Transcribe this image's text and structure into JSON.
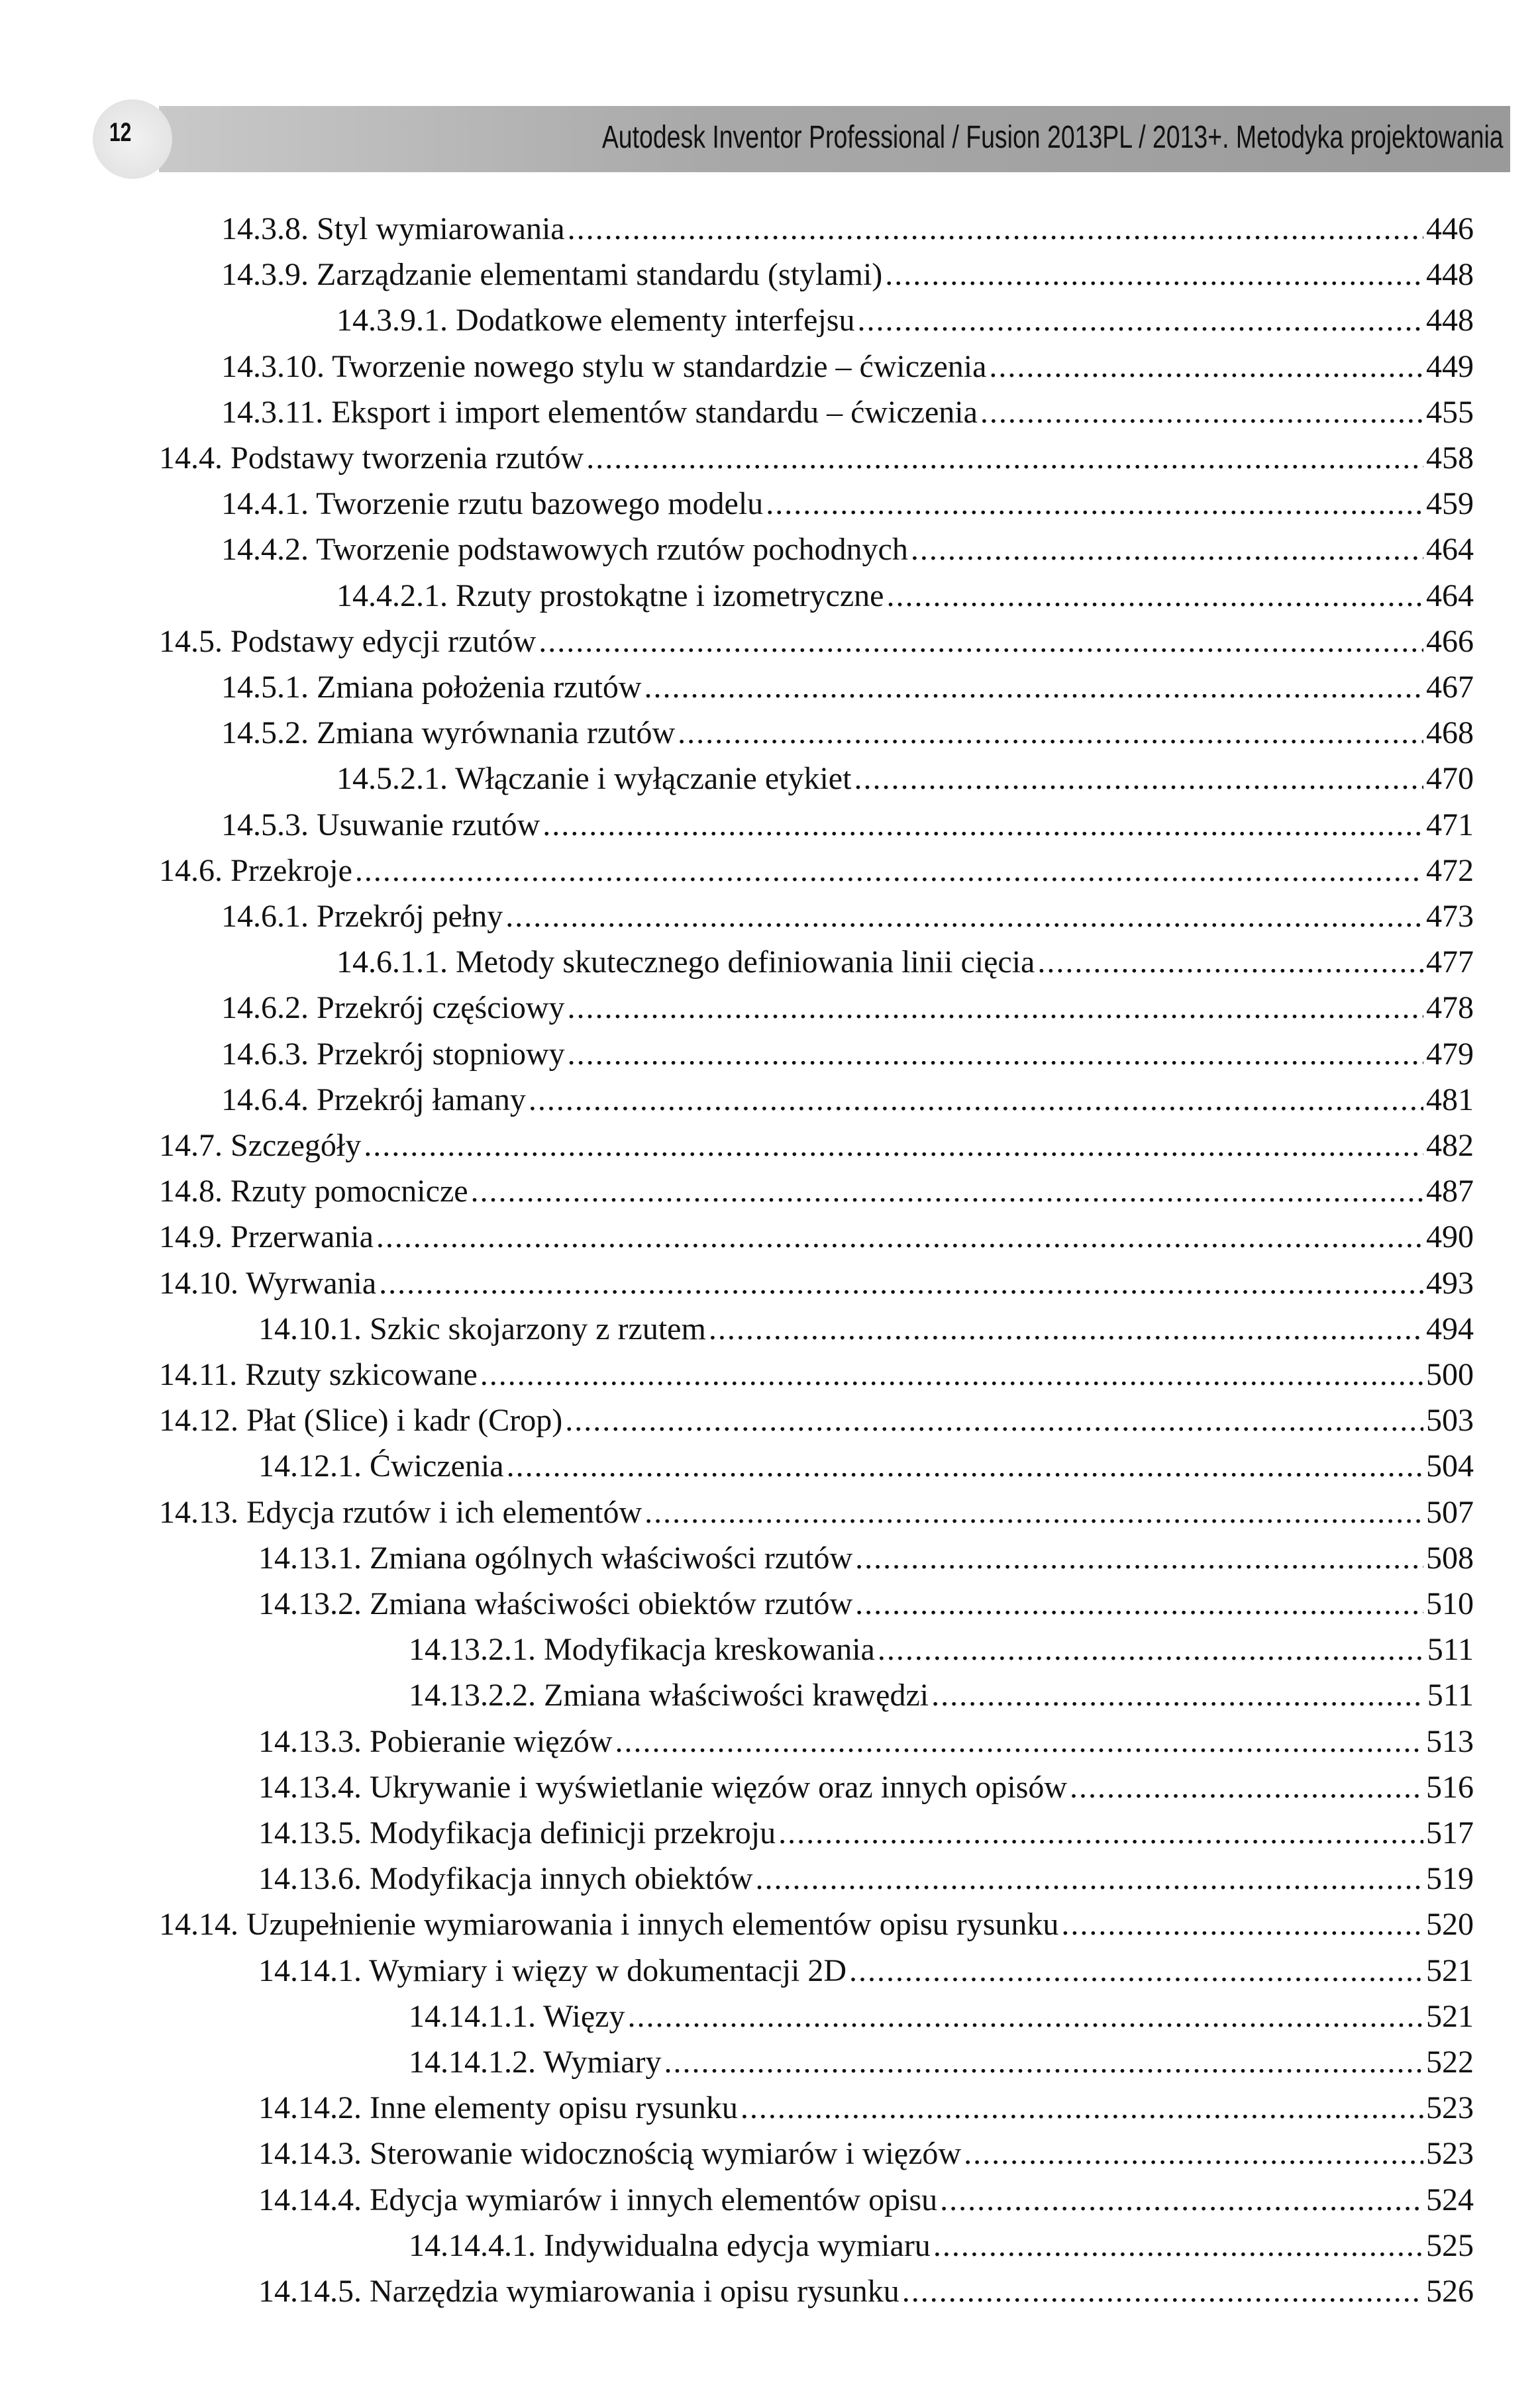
{
  "header": {
    "page_number": "12",
    "title": "Autodesk Inventor Professional / Fusion 2013PL / 2013+. Metodyka projektowania"
  },
  "toc": [
    {
      "level": 2,
      "title": "14.3.8. Styl wymiarowania",
      "page": "446"
    },
    {
      "level": 2,
      "title": "14.3.9. Zarządzanie elementami standardu (stylami)",
      "page": "448"
    },
    {
      "level": 3,
      "title": "14.3.9.1. Dodatkowe elementy interfejsu",
      "page": "448"
    },
    {
      "level": 2,
      "title": "14.3.10. Tworzenie nowego stylu w standardzie – ćwiczenia",
      "page": "449"
    },
    {
      "level": 2,
      "title": "14.3.11. Eksport i import elementów standardu – ćwiczenia",
      "page": "455"
    },
    {
      "level": 1,
      "title": "14.4. Podstawy tworzenia rzutów",
      "page": "458"
    },
    {
      "level": 2,
      "title": "14.4.1. Tworzenie rzutu bazowego modelu",
      "page": "459"
    },
    {
      "level": 2,
      "title": "14.4.2. Tworzenie podstawowych rzutów pochodnych",
      "page": "464"
    },
    {
      "level": 3,
      "title": "14.4.2.1. Rzuty prostokątne i izometryczne",
      "page": "464"
    },
    {
      "level": 1,
      "title": "14.5. Podstawy edycji rzutów",
      "page": "466"
    },
    {
      "level": 2,
      "title": "14.5.1. Zmiana położenia rzutów",
      "page": "467"
    },
    {
      "level": 2,
      "title": "14.5.2. Zmiana wyrównania rzutów",
      "page": "468"
    },
    {
      "level": 3,
      "title": "14.5.2.1. Włączanie i wyłączanie etykiet",
      "page": "470"
    },
    {
      "level": 2,
      "title": "14.5.3. Usuwanie rzutów",
      "page": "471"
    },
    {
      "level": 1,
      "title": "14.6. Przekroje",
      "page": "472"
    },
    {
      "level": 2,
      "title": "14.6.1. Przekrój pełny",
      "page": "473"
    },
    {
      "level": 3,
      "title": "14.6.1.1. Metody skutecznego definiowania linii cięcia",
      "page": "477"
    },
    {
      "level": 2,
      "title": "14.6.2. Przekrój częściowy",
      "page": "478"
    },
    {
      "level": 2,
      "title": "14.6.3. Przekrój stopniowy",
      "page": "479"
    },
    {
      "level": 2,
      "title": "14.6.4. Przekrój łamany",
      "page": "481"
    },
    {
      "level": 1,
      "title": "14.7. Szczegóły",
      "page": "482"
    },
    {
      "level": 1,
      "title": "14.8. Rzuty pomocnicze",
      "page": "487"
    },
    {
      "level": 1,
      "title": "14.9. Przerwania",
      "page": "490"
    },
    {
      "level": 1,
      "title": "14.10. Wyrwania",
      "page": "493"
    },
    {
      "level": 2,
      "title": "14.10.1. Szkic skojarzony z rzutem",
      "page": "494"
    },
    {
      "level": 1,
      "title": "14.11. Rzuty szkicowane",
      "page": "500"
    },
    {
      "level": 1,
      "title": "14.12. Płat (Slice) i kadr (Crop)",
      "page": "503"
    },
    {
      "level": 2,
      "title": "14.12.1. Ćwiczenia",
      "page": "504"
    },
    {
      "level": 1,
      "title": "14.13. Edycja rzutów i ich elementów",
      "page": "507"
    },
    {
      "level": 2,
      "title": "14.13.1. Zmiana ogólnych właściwości rzutów",
      "page": "508"
    },
    {
      "level": 2,
      "title": "14.13.2. Zmiana właściwości obiektów rzutów",
      "page": "510"
    },
    {
      "level": 3,
      "title": "14.13.2.1. Modyfikacja kreskowania",
      "page": "511"
    },
    {
      "level": 3,
      "title": "14.13.2.2. Zmiana właściwości krawędzi",
      "page": "511"
    },
    {
      "level": 2,
      "title": "14.13.3. Pobieranie więzów",
      "page": "513"
    },
    {
      "level": 2,
      "title": "14.13.4. Ukrywanie i wyświetlanie więzów oraz innych opisów",
      "page": "516"
    },
    {
      "level": 2,
      "title": "14.13.5. Modyfikacja definicji przekroju",
      "page": "517"
    },
    {
      "level": 2,
      "title": "14.13.6. Modyfikacja innych obiektów",
      "page": "519"
    },
    {
      "level": 1,
      "title": "14.14. Uzupełnienie wymiarowania i innych elementów opisu rysunku",
      "page": "520"
    },
    {
      "level": 2,
      "title": "14.14.1. Wymiary i więzy w dokumentacji 2D",
      "page": "521"
    },
    {
      "level": 3,
      "title": "14.14.1.1. Więzy",
      "page": "521"
    },
    {
      "level": 3,
      "title": "14.14.1.2. Wymiary",
      "page": "522"
    },
    {
      "level": 2,
      "title": "14.14.2. Inne elementy opisu rysunku",
      "page": "523"
    },
    {
      "level": 2,
      "title": "14.14.3. Sterowanie widocznością wymiarów i więzów",
      "page": "523"
    },
    {
      "level": 2,
      "title": "14.14.4. Edycja wymiarów i innych elementów opisu",
      "page": "524"
    },
    {
      "level": 3,
      "title": "14.14.4.1. Indywidualna edycja wymiaru",
      "page": "525"
    },
    {
      "level": 2,
      "title": "14.14.5. Narzędzia wymiarowania i opisu rysunku",
      "page": "526"
    }
  ]
}
